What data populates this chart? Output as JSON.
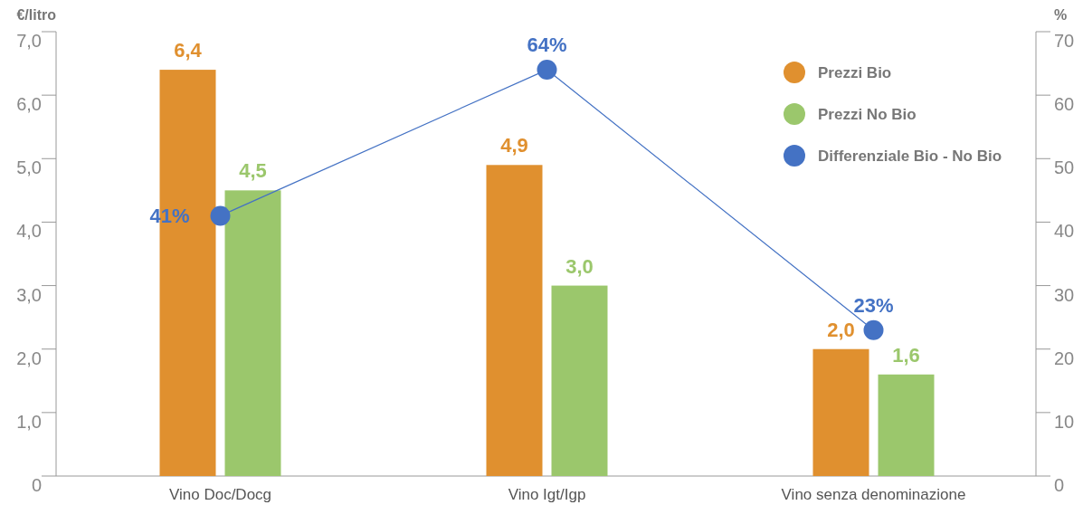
{
  "chart_data": {
    "type": "bar",
    "categories": [
      "Vino Doc/Docg",
      "Vino Igt/Igp",
      "Vino senza denominazione"
    ],
    "ylabel": "€/litro",
    "y2label": "%",
    "ylim": [
      0,
      7
    ],
    "yticks": [
      0,
      {
        "value": 1,
        "label": "1,0"
      },
      {
        "value": 2,
        "label": "2,0"
      },
      {
        "value": 3,
        "label": "3,0"
      },
      {
        "value": 4,
        "label": "4,0"
      },
      {
        "value": 5,
        "label": "5,0"
      },
      {
        "value": 6,
        "label": "6,0"
      },
      {
        "value": 7,
        "label": "7,0"
      }
    ],
    "y2lim": [
      0,
      70
    ],
    "y2ticks": [
      0,
      10,
      20,
      30,
      40,
      50,
      60,
      70
    ],
    "grid": false,
    "legend": "top right",
    "series": [
      {
        "name": "Prezzi Bio",
        "color": "#e0902f",
        "values": [
          6.4,
          4.9,
          2.0
        ],
        "value_labels": [
          "6,4",
          "4,9",
          "2,0"
        ]
      },
      {
        "name": "Prezzi No Bio",
        "color": "#9bc76c",
        "values": [
          4.5,
          3.0,
          1.6
        ],
        "value_labels": [
          "4,5",
          "3,0",
          "1,6"
        ]
      },
      {
        "name": "Differenziale Bio - No Bio",
        "type": "line",
        "axis": "y2",
        "color": "#4472c4",
        "marker": "circle",
        "values": [
          41,
          64,
          23
        ],
        "value_labels": [
          "41%",
          "64%",
          "23%"
        ]
      }
    ]
  }
}
